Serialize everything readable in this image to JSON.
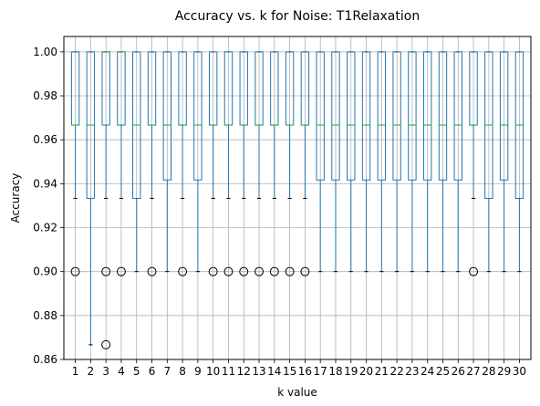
{
  "chart_data": {
    "type": "box",
    "title": "Accuracy vs. k for Noise: T1Relaxation",
    "xlabel": "k value",
    "ylabel": "Accuracy",
    "ylim": [
      0.86,
      1.007
    ],
    "yticks": [
      0.86,
      0.88,
      0.9,
      0.92,
      0.94,
      0.96,
      0.98,
      1.0
    ],
    "ytick_labels": [
      "0.86",
      "0.88",
      "0.90",
      "0.92",
      "0.94",
      "0.96",
      "0.98",
      "1.00"
    ],
    "grid": true,
    "colors": {
      "box": "#1f77b4",
      "median": "#2ca02c",
      "grid": "#b0b0b0",
      "outlier": "#000000"
    },
    "categories": [
      "1",
      "2",
      "3",
      "4",
      "5",
      "6",
      "7",
      "8",
      "9",
      "10",
      "11",
      "12",
      "13",
      "14",
      "15",
      "16",
      "17",
      "18",
      "19",
      "20",
      "21",
      "22",
      "23",
      "24",
      "25",
      "26",
      "27",
      "28",
      "29",
      "30"
    ],
    "boxes": [
      {
        "k": "1",
        "whislo": 0.9333,
        "q1": 0.9667,
        "med": 0.9667,
        "q3": 1.0,
        "whishi": 1.0,
        "fliers": [
          0.9
        ]
      },
      {
        "k": "2",
        "whislo": 0.8667,
        "q1": 0.9333,
        "med": 0.9667,
        "q3": 1.0,
        "whishi": 1.0,
        "fliers": []
      },
      {
        "k": "3",
        "whislo": 0.9333,
        "q1": 0.9667,
        "med": 1.0,
        "q3": 1.0,
        "whishi": 1.0,
        "fliers": [
          0.9,
          0.8667
        ]
      },
      {
        "k": "4",
        "whislo": 0.9333,
        "q1": 0.9667,
        "med": 1.0,
        "q3": 1.0,
        "whishi": 1.0,
        "fliers": [
          0.9
        ]
      },
      {
        "k": "5",
        "whislo": 0.9,
        "q1": 0.9333,
        "med": 0.9667,
        "q3": 1.0,
        "whishi": 1.0,
        "fliers": []
      },
      {
        "k": "6",
        "whislo": 0.9333,
        "q1": 0.9667,
        "med": 0.9667,
        "q3": 1.0,
        "whishi": 1.0,
        "fliers": [
          0.9
        ]
      },
      {
        "k": "7",
        "whislo": 0.9,
        "q1": 0.9417,
        "med": 0.9667,
        "q3": 1.0,
        "whishi": 1.0,
        "fliers": []
      },
      {
        "k": "8",
        "whislo": 0.9333,
        "q1": 0.9667,
        "med": 0.9667,
        "q3": 1.0,
        "whishi": 1.0,
        "fliers": [
          0.9
        ]
      },
      {
        "k": "9",
        "whislo": 0.9,
        "q1": 0.9417,
        "med": 0.9667,
        "q3": 1.0,
        "whishi": 1.0,
        "fliers": []
      },
      {
        "k": "10",
        "whislo": 0.9333,
        "q1": 0.9667,
        "med": 0.9667,
        "q3": 1.0,
        "whishi": 1.0,
        "fliers": [
          0.9
        ]
      },
      {
        "k": "11",
        "whislo": 0.9333,
        "q1": 0.9667,
        "med": 0.9667,
        "q3": 1.0,
        "whishi": 1.0,
        "fliers": [
          0.9
        ]
      },
      {
        "k": "12",
        "whislo": 0.9333,
        "q1": 0.9667,
        "med": 0.9667,
        "q3": 1.0,
        "whishi": 1.0,
        "fliers": [
          0.9
        ]
      },
      {
        "k": "13",
        "whislo": 0.9333,
        "q1": 0.9667,
        "med": 0.9667,
        "q3": 1.0,
        "whishi": 1.0,
        "fliers": [
          0.9
        ]
      },
      {
        "k": "14",
        "whislo": 0.9333,
        "q1": 0.9667,
        "med": 0.9667,
        "q3": 1.0,
        "whishi": 1.0,
        "fliers": [
          0.9
        ]
      },
      {
        "k": "15",
        "whislo": 0.9333,
        "q1": 0.9667,
        "med": 0.9667,
        "q3": 1.0,
        "whishi": 1.0,
        "fliers": [
          0.9
        ]
      },
      {
        "k": "16",
        "whislo": 0.9333,
        "q1": 0.9667,
        "med": 0.9667,
        "q3": 1.0,
        "whishi": 1.0,
        "fliers": [
          0.9
        ]
      },
      {
        "k": "17",
        "whislo": 0.9,
        "q1": 0.9417,
        "med": 0.9667,
        "q3": 1.0,
        "whishi": 1.0,
        "fliers": []
      },
      {
        "k": "18",
        "whislo": 0.9,
        "q1": 0.9417,
        "med": 0.9667,
        "q3": 1.0,
        "whishi": 1.0,
        "fliers": []
      },
      {
        "k": "19",
        "whislo": 0.9,
        "q1": 0.9417,
        "med": 0.9667,
        "q3": 1.0,
        "whishi": 1.0,
        "fliers": []
      },
      {
        "k": "20",
        "whislo": 0.9,
        "q1": 0.9417,
        "med": 0.9667,
        "q3": 1.0,
        "whishi": 1.0,
        "fliers": []
      },
      {
        "k": "21",
        "whislo": 0.9,
        "q1": 0.9417,
        "med": 0.9667,
        "q3": 1.0,
        "whishi": 1.0,
        "fliers": []
      },
      {
        "k": "22",
        "whislo": 0.9,
        "q1": 0.9417,
        "med": 0.9667,
        "q3": 1.0,
        "whishi": 1.0,
        "fliers": []
      },
      {
        "k": "23",
        "whislo": 0.9,
        "q1": 0.9417,
        "med": 0.9667,
        "q3": 1.0,
        "whishi": 1.0,
        "fliers": []
      },
      {
        "k": "24",
        "whislo": 0.9,
        "q1": 0.9417,
        "med": 0.9667,
        "q3": 1.0,
        "whishi": 1.0,
        "fliers": []
      },
      {
        "k": "25",
        "whislo": 0.9,
        "q1": 0.9417,
        "med": 0.9667,
        "q3": 1.0,
        "whishi": 1.0,
        "fliers": []
      },
      {
        "k": "26",
        "whislo": 0.9,
        "q1": 0.9417,
        "med": 0.9667,
        "q3": 1.0,
        "whishi": 1.0,
        "fliers": []
      },
      {
        "k": "27",
        "whislo": 0.9333,
        "q1": 0.9667,
        "med": 0.9667,
        "q3": 1.0,
        "whishi": 1.0,
        "fliers": [
          0.9
        ]
      },
      {
        "k": "28",
        "whislo": 0.9,
        "q1": 0.9333,
        "med": 0.9667,
        "q3": 1.0,
        "whishi": 1.0,
        "fliers": []
      },
      {
        "k": "29",
        "whislo": 0.9,
        "q1": 0.9417,
        "med": 0.9667,
        "q3": 1.0,
        "whishi": 1.0,
        "fliers": []
      },
      {
        "k": "30",
        "whislo": 0.9,
        "q1": 0.9333,
        "med": 0.9667,
        "q3": 1.0,
        "whishi": 1.0,
        "fliers": []
      }
    ]
  }
}
